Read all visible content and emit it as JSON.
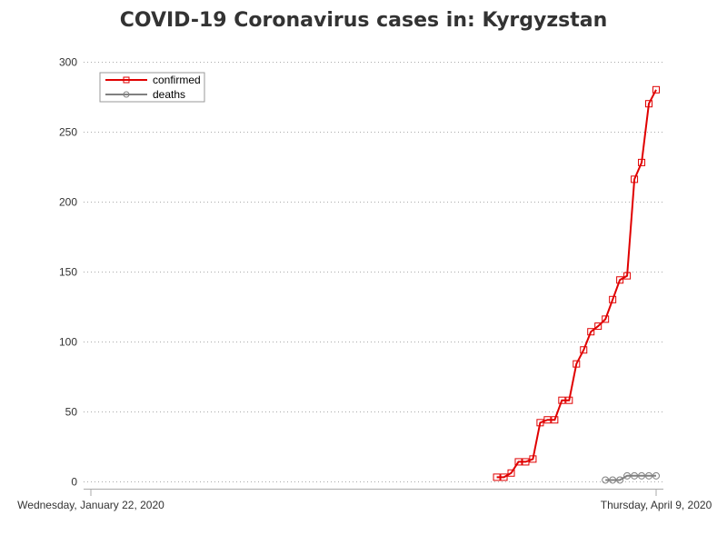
{
  "chart_data": {
    "type": "line",
    "title": "COVID-19 Coronavirus cases in: Kyrgyzstan",
    "xlabel": "",
    "ylabel": "",
    "x_start": "2020-01-22",
    "x_end": "2020-04-09",
    "x_tick_labels": [
      "Wednesday, January 22, 2020",
      "Thursday, April 9, 2020"
    ],
    "ylim": [
      0,
      300
    ],
    "y_ticks": [
      0,
      50,
      100,
      150,
      200,
      250,
      300
    ],
    "grid": true,
    "legend_position": "top-left",
    "series": [
      {
        "name": "confirmed",
        "color": "#e00000",
        "marker": "square",
        "x": [
          "2020-03-18",
          "2020-03-19",
          "2020-03-20",
          "2020-03-21",
          "2020-03-22",
          "2020-03-23",
          "2020-03-24",
          "2020-03-25",
          "2020-03-26",
          "2020-03-27",
          "2020-03-28",
          "2020-03-29",
          "2020-03-30",
          "2020-03-31",
          "2020-04-01",
          "2020-04-02",
          "2020-04-03",
          "2020-04-04",
          "2020-04-05",
          "2020-04-06",
          "2020-04-07",
          "2020-04-08",
          "2020-04-09"
        ],
        "values": [
          3,
          3,
          6,
          14,
          14,
          16,
          42,
          44,
          44,
          58,
          58,
          84,
          94,
          107,
          111,
          116,
          130,
          144,
          147,
          216,
          228,
          270,
          280
        ]
      },
      {
        "name": "deaths",
        "color": "#808080",
        "marker": "circle",
        "x": [
          "2020-04-02",
          "2020-04-03",
          "2020-04-04",
          "2020-04-05",
          "2020-04-06",
          "2020-04-07",
          "2020-04-08",
          "2020-04-09"
        ],
        "values": [
          1,
          1,
          1,
          4,
          4,
          4,
          4,
          4
        ]
      }
    ]
  }
}
